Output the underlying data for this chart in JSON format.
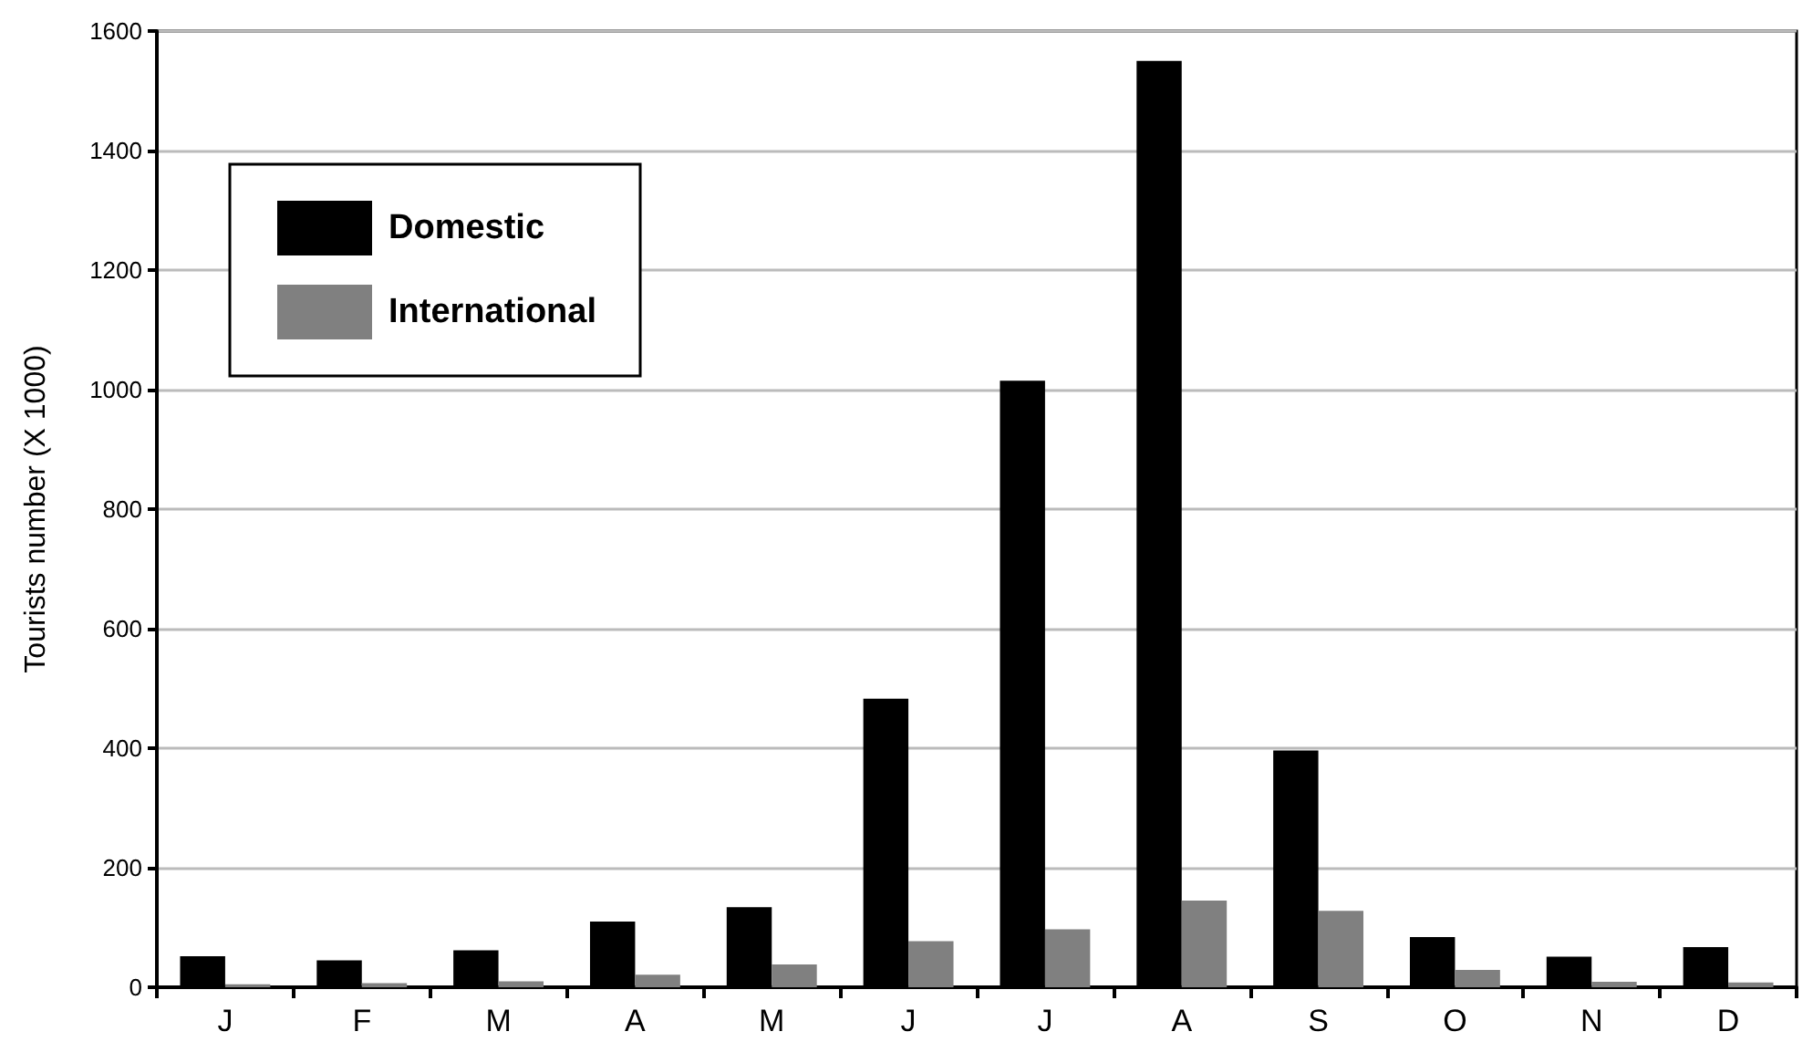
{
  "chart_data": {
    "type": "bar",
    "ylabel": "Tourists number (X 1000)",
    "categories": [
      "J",
      "F",
      "M",
      "A",
      "M",
      "J",
      "J",
      "A",
      "S",
      "O",
      "N",
      "D"
    ],
    "series": [
      {
        "name": "Domestic",
        "color": "#000000",
        "values": [
          52,
          45,
          62,
          110,
          134,
          483,
          1015,
          1550,
          396,
          84,
          51,
          67
        ]
      },
      {
        "name": "International",
        "color": "#808080",
        "values": [
          5,
          7,
          10,
          21,
          38,
          77,
          97,
          145,
          128,
          29,
          9,
          8
        ]
      }
    ],
    "ylim": [
      0,
      1600
    ],
    "yticks": [
      0,
      200,
      400,
      600,
      800,
      1000,
      1200,
      1400,
      1600
    ],
    "grid": "y",
    "legend": "top left"
  }
}
